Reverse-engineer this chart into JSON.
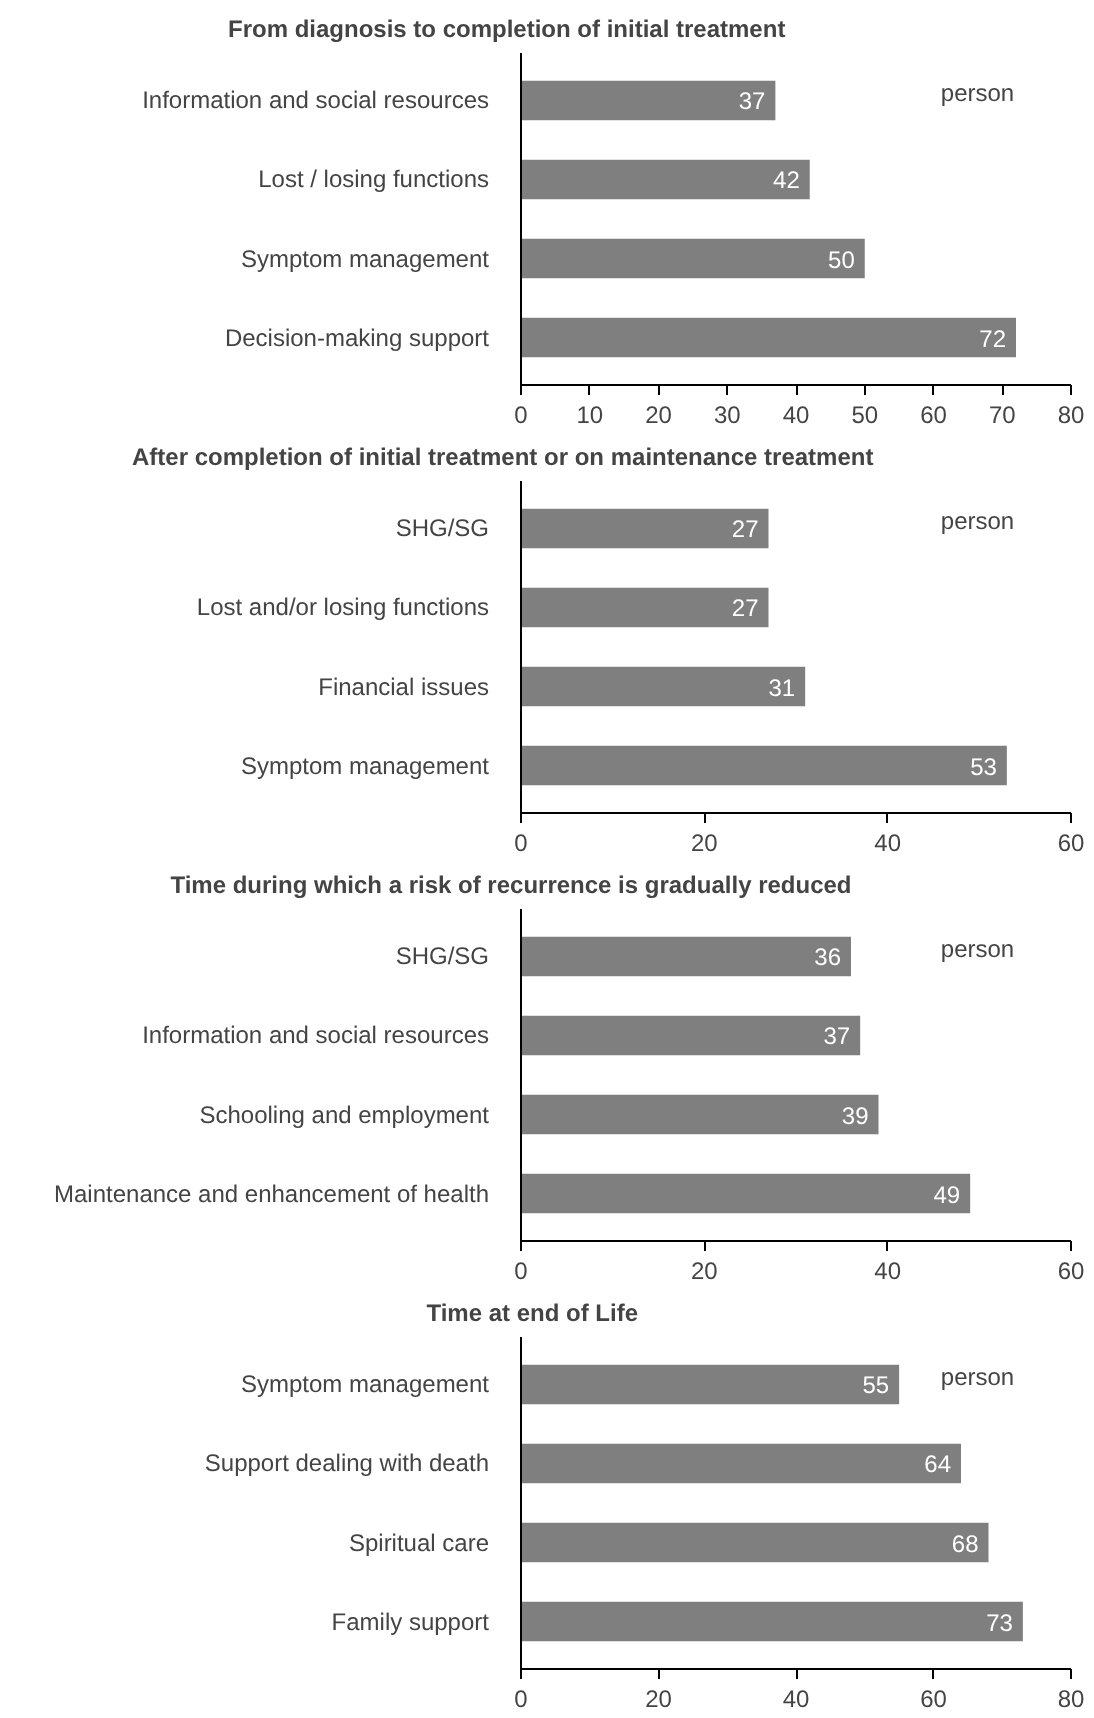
{
  "chart_data": [
    {
      "type": "bar",
      "orientation": "horizontal",
      "title": "From diagnosis to completion of initial  treatment",
      "categories": [
        "Information and social resources",
        "Lost / losing functions",
        "Symptom management",
        "Decision-making support"
      ],
      "values": [
        37,
        42,
        50,
        72
      ],
      "color": "#7f7f7f",
      "xlim": [
        0,
        80
      ],
      "xticks": [
        0,
        10,
        20,
        30,
        40,
        50,
        60,
        70,
        80
      ],
      "data_labels": true,
      "grid": false,
      "annotations": [
        "person"
      ]
    },
    {
      "type": "bar",
      "orientation": "horizontal",
      "title": "After completion of initial treatment or on maintenance treatment",
      "categories": [
        "SHG/SG",
        "Lost and/or losing functions",
        "Financial issues",
        "Symptom management"
      ],
      "values": [
        27,
        27,
        31,
        53
      ],
      "color": "#7f7f7f",
      "xlim": [
        0,
        60
      ],
      "xticks": [
        0,
        20,
        40,
        60
      ],
      "data_labels": true,
      "grid": false,
      "annotations": [
        "person"
      ]
    },
    {
      "type": "bar",
      "orientation": "horizontal",
      "title": "Time during which a risk of recurrence is gradually reduced",
      "categories": [
        "SHG/SG",
        "Information and social resources",
        "Schooling and employment",
        "Maintenance and enhancement of health"
      ],
      "values": [
        36,
        37,
        39,
        49
      ],
      "color": "#7f7f7f",
      "xlim": [
        0,
        60
      ],
      "xticks": [
        0,
        20,
        40,
        60
      ],
      "data_labels": true,
      "grid": false,
      "annotations": [
        "person"
      ]
    },
    {
      "type": "bar",
      "orientation": "horizontal",
      "title": "Time at end of Life",
      "categories": [
        "Symptom management",
        "Support dealing with death",
        "Spiritual care",
        "Family support"
      ],
      "values": [
        55,
        64,
        68,
        73
      ],
      "color": "#7f7f7f",
      "xlim": [
        0,
        80
      ],
      "xticks": [
        0,
        20,
        40,
        60,
        80
      ],
      "data_labels": true,
      "grid": false,
      "annotations": [
        "person"
      ]
    }
  ]
}
